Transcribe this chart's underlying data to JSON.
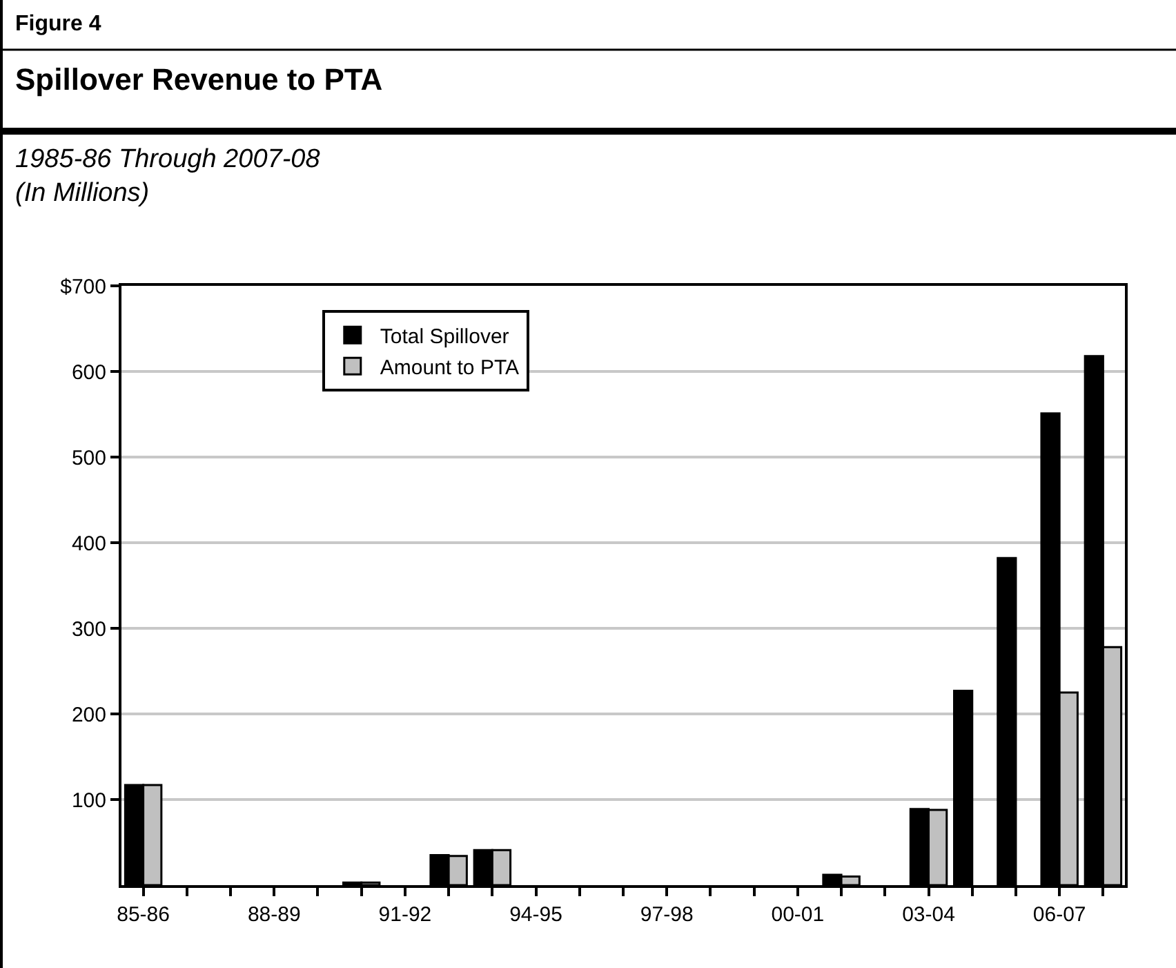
{
  "chart_data": {
    "type": "bar",
    "title": "Spillover Revenue to PTA",
    "subtitle": "1985-86 Through 2007-08\n(In Millions)",
    "annotations": [
      "Figure 4"
    ],
    "categories": [
      "85-86",
      null,
      null,
      "88-89",
      null,
      null,
      "91-92",
      null,
      null,
      "94-95",
      null,
      null,
      "97-98",
      null,
      null,
      "00-01",
      null,
      null,
      "03-04",
      null,
      null,
      "06-07",
      null
    ],
    "series": [
      {
        "name": "Total Spillover",
        "color": "#000000",
        "values": [
          117,
          null,
          null,
          null,
          null,
          3,
          null,
          35,
          41,
          null,
          null,
          null,
          null,
          null,
          null,
          null,
          12,
          null,
          89,
          227,
          382,
          551,
          618
        ]
      },
      {
        "name": "Amount to PTA",
        "color": "#c0c0c0",
        "values": [
          117,
          null,
          null,
          null,
          null,
          3,
          null,
          34,
          41,
          null,
          null,
          null,
          null,
          null,
          null,
          null,
          10,
          null,
          88,
          null,
          null,
          225,
          278
        ]
      }
    ],
    "ylim": [
      0,
      700
    ],
    "yticks": [
      100,
      200,
      300,
      400,
      500,
      600,
      {
        "value": 700,
        "label": "$700"
      }
    ],
    "grid": "y",
    "legend": "top left"
  }
}
